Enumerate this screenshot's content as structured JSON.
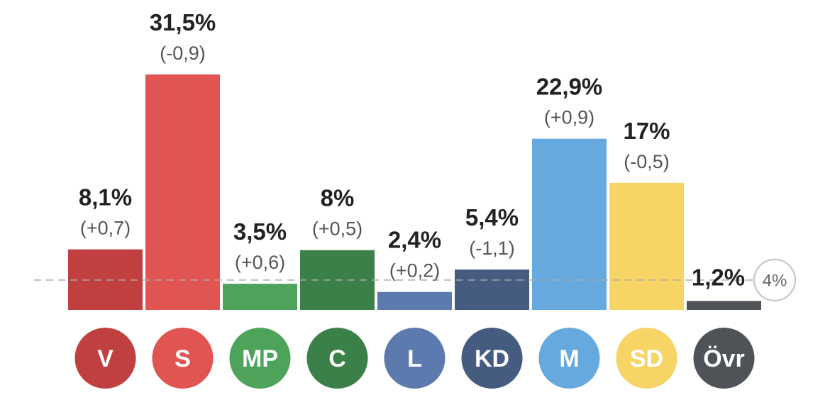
{
  "chart_data": {
    "type": "bar",
    "categories": [
      "V",
      "S",
      "MP",
      "C",
      "L",
      "KD",
      "M",
      "SD",
      "Övr"
    ],
    "values": [
      8.1,
      31.5,
      3.5,
      8,
      2.4,
      5.4,
      22.9,
      17,
      1.2
    ],
    "value_labels": [
      "8,1%",
      "31,5%",
      "3,5%",
      "8%",
      "2,4%",
      "5,4%",
      "22,9%",
      "17%",
      "1,2%"
    ],
    "change_labels": [
      "(+0,7)",
      "(-0,9)",
      "(+0,6)",
      "(+0,5)",
      "(+0,2)",
      "(-1,1)",
      "(+0,9)",
      "(-0,5)",
      ""
    ],
    "colors": [
      "#c0403f",
      "#e05451",
      "#4ea35a",
      "#3b8048",
      "#5c7aae",
      "#465b80",
      "#66a9de",
      "#f6d466",
      "#4f5357"
    ],
    "threshold": {
      "value": 4,
      "label": "4%"
    },
    "ylim": [
      0,
      32
    ],
    "grid": false,
    "legend": "none"
  }
}
